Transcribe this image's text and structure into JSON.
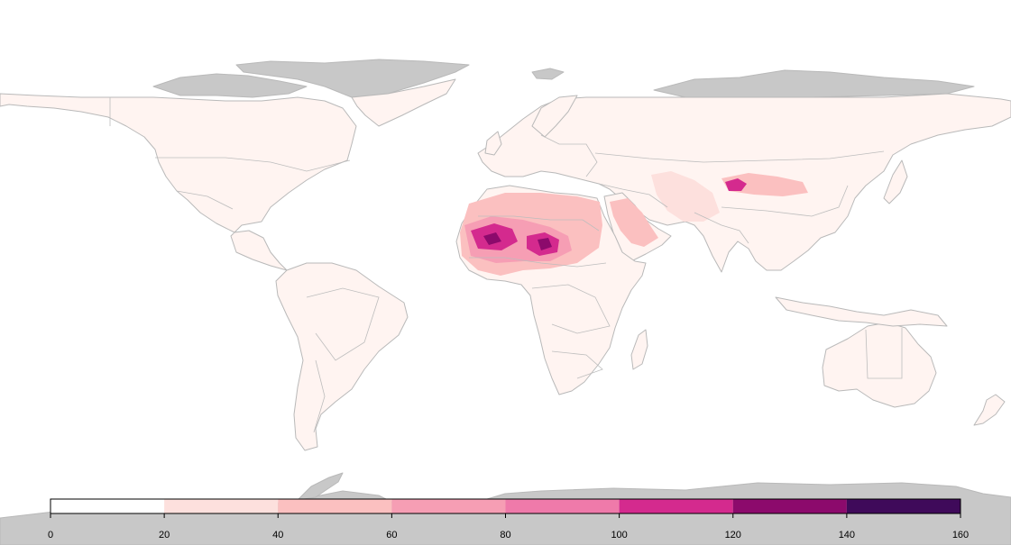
{
  "map": {
    "land_fill": "#fff4f1",
    "ice_fill": "#c8c8c8",
    "border_color": "#bdbdbd",
    "hotspots": [
      {
        "name": "west-sahel",
        "level": 140
      },
      {
        "name": "lake-chad-basin",
        "level": 140
      },
      {
        "name": "arabian-peninsula",
        "level": 60
      },
      {
        "name": "taklamakan",
        "level": 100
      },
      {
        "name": "iran-afghanistan",
        "level": 40
      }
    ]
  },
  "legend": {
    "min": 0,
    "max": 160,
    "ticks": [
      "0",
      "20",
      "40",
      "60",
      "80",
      "100",
      "120",
      "140",
      "160"
    ],
    "bins": [
      {
        "from": 0,
        "to": 20,
        "color": "#ffffff"
      },
      {
        "from": 20,
        "to": 40,
        "color": "#fde0dd"
      },
      {
        "from": 40,
        "to": 60,
        "color": "#fbc0c0"
      },
      {
        "from": 60,
        "to": 80,
        "color": "#f69eb4"
      },
      {
        "from": 80,
        "to": 100,
        "color": "#ef7aaa"
      },
      {
        "from": 100,
        "to": 120,
        "color": "#d42a8e"
      },
      {
        "from": 120,
        "to": 140,
        "color": "#8c0a6c"
      },
      {
        "from": 140,
        "to": 160,
        "color": "#3f0a5a"
      }
    ]
  }
}
